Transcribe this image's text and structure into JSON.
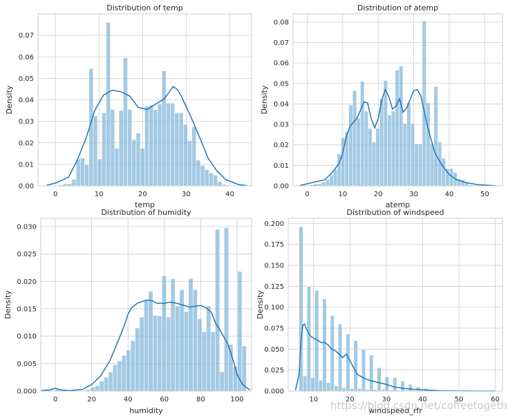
{
  "watermark": "https://blog.csdn.net/coffeetogether",
  "chart_data": [
    {
      "type": "bar",
      "title": "Distribution of temp",
      "xlabel": "temp",
      "ylabel": "Density",
      "xlim": [
        -4,
        45
      ],
      "ylim": [
        0,
        0.08
      ],
      "xticks": [
        0,
        10,
        20,
        30,
        40
      ],
      "yticks": [
        0.0,
        0.01,
        0.02,
        0.03,
        0.04,
        0.05,
        0.06,
        0.07
      ],
      "ytick_labels": [
        "0.00",
        "0.01",
        "0.02",
        "0.03",
        "0.04",
        "0.05",
        "0.06",
        "0.07"
      ],
      "bin_start": 0.8,
      "bin_width": 0.984,
      "values": [
        0.0005,
        0.001,
        0.001,
        0.003,
        0.0125,
        0.013,
        0.01,
        0.0545,
        0.0325,
        0.0125,
        0.034,
        0.076,
        0.0355,
        0.0175,
        0.035,
        0.0595,
        0.0355,
        0.0215,
        0.0245,
        0.0175,
        0.037,
        0.0375,
        0.0355,
        0.038,
        0.0535,
        0.0385,
        0.0385,
        0.034,
        0.034,
        0.0285,
        0.021,
        0.0275,
        0.012,
        0.0095,
        0.0075,
        0.006,
        0.005,
        0.002,
        0.0007,
        0.0002
      ],
      "kde": [
        [
          -2,
          0.0003
        ],
        [
          0,
          0.0013
        ],
        [
          3,
          0.004
        ],
        [
          5,
          0.012
        ],
        [
          7,
          0.022
        ],
        [
          9,
          0.035
        ],
        [
          11,
          0.0422
        ],
        [
          13,
          0.0445
        ],
        [
          15,
          0.0438
        ],
        [
          17,
          0.0418
        ],
        [
          19,
          0.0365
        ],
        [
          21,
          0.0355
        ],
        [
          23,
          0.038
        ],
        [
          25,
          0.0405
        ],
        [
          27,
          0.0462
        ],
        [
          28,
          0.0448
        ],
        [
          29,
          0.0412
        ],
        [
          31,
          0.0325
        ],
        [
          33,
          0.023
        ],
        [
          35,
          0.013
        ],
        [
          37,
          0.007
        ],
        [
          39,
          0.003
        ],
        [
          42,
          0.0006
        ],
        [
          44,
          0.0001
        ]
      ]
    },
    {
      "type": "bar",
      "title": "Distribution of atemp",
      "xlabel": "atemp",
      "ylabel": "Density",
      "xlim": [
        -4,
        55
      ],
      "ylim": [
        0,
        0.084
      ],
      "xticks": [
        0,
        10,
        20,
        30,
        40,
        50
      ],
      "yticks": [
        0.0,
        0.01,
        0.02,
        0.03,
        0.04,
        0.05,
        0.06,
        0.07,
        0.08
      ],
      "ytick_labels": [
        "0.00",
        "0.01",
        "0.02",
        "0.03",
        "0.04",
        "0.05",
        "0.06",
        "0.07",
        "0.08"
      ],
      "bin_start": 0.8,
      "bin_width": 1.09,
      "values": [
        0.0005,
        0.001,
        0.001,
        0.002,
        0.003,
        0.005,
        0.008,
        0.0155,
        0.0235,
        0.0265,
        0.0395,
        0.0465,
        0.033,
        0.051,
        0.0365,
        0.028,
        0.0215,
        0.028,
        0.0425,
        0.0515,
        0.0345,
        0.0365,
        0.0565,
        0.0585,
        0.0305,
        0.0405,
        0.0305,
        0.0205,
        0.0205,
        0.0805,
        0.0405,
        0.0205,
        0.0485,
        0.0215,
        0.0135,
        0.0085,
        0.0085,
        0.0065,
        0.0035,
        0.003,
        0.0015,
        0.0005
      ],
      "kde": [
        [
          -2,
          0.0002
        ],
        [
          0,
          0.001
        ],
        [
          5,
          0.003
        ],
        [
          7,
          0.0065
        ],
        [
          9,
          0.011
        ],
        [
          10,
          0.016
        ],
        [
          11,
          0.024
        ],
        [
          12,
          0.029
        ],
        [
          14,
          0.033
        ],
        [
          15,
          0.037
        ],
        [
          16,
          0.041
        ],
        [
          17,
          0.0405
        ],
        [
          18,
          0.033
        ],
        [
          19,
          0.0283
        ],
        [
          20,
          0.033
        ],
        [
          21,
          0.042
        ],
        [
          22,
          0.047
        ],
        [
          23,
          0.0435
        ],
        [
          24,
          0.0375
        ],
        [
          25,
          0.039
        ],
        [
          26,
          0.0425
        ],
        [
          27,
          0.036
        ],
        [
          28,
          0.038
        ],
        [
          30,
          0.0465
        ],
        [
          31,
          0.047
        ],
        [
          32,
          0.044
        ],
        [
          34,
          0.028
        ],
        [
          36,
          0.016
        ],
        [
          38,
          0.01
        ],
        [
          40,
          0.0055
        ],
        [
          42,
          0.003
        ],
        [
          45,
          0.0015
        ],
        [
          48,
          0.0006
        ],
        [
          53,
          0.0001
        ]
      ]
    },
    {
      "type": "bar",
      "title": "Distribution of humidity",
      "xlabel": "humidity",
      "ylabel": "Density",
      "xlim": [
        -8,
        108
      ],
      "ylim": [
        0,
        0.0315
      ],
      "xticks": [
        0,
        20,
        40,
        60,
        80,
        100
      ],
      "yticks": [
        0.0,
        0.005,
        0.01,
        0.015,
        0.02,
        0.025,
        0.03
      ],
      "ytick_labels": [
        "0.000",
        "0.005",
        "0.010",
        "0.015",
        "0.020",
        "0.025",
        "0.030"
      ],
      "bin_start": -0.2,
      "bin_width": 2.45,
      "values": [
        0.0003,
        0.0001,
        0,
        0,
        0,
        0,
        0,
        0.0003,
        0.0007,
        0.001,
        0.0018,
        0.0025,
        0.0035,
        0.0048,
        0.0055,
        0.0065,
        0.0075,
        0.0092,
        0.0115,
        0.0135,
        0.0165,
        0.0182,
        0.0138,
        0.0137,
        0.021,
        0.0135,
        0.0205,
        0.0155,
        0.0185,
        0.0145,
        0.0205,
        0.0185,
        0.0132,
        0.0108,
        0.0155,
        0.0108,
        0.0295,
        0.0035,
        0.0298,
        0.0085,
        0.0045,
        0.0218,
        0.0082
      ],
      "kde": [
        [
          -8,
          0.0001
        ],
        [
          -3,
          0.0002
        ],
        [
          0,
          0.0005
        ],
        [
          3,
          0.0002
        ],
        [
          8,
          0.0001
        ],
        [
          15,
          0.0003
        ],
        [
          20,
          0.0012
        ],
        [
          25,
          0.0028
        ],
        [
          30,
          0.0055
        ],
        [
          35,
          0.0095
        ],
        [
          38,
          0.012
        ],
        [
          40,
          0.014
        ],
        [
          42,
          0.0152
        ],
        [
          45,
          0.016
        ],
        [
          50,
          0.0166
        ],
        [
          53,
          0.0165
        ],
        [
          56,
          0.016
        ],
        [
          60,
          0.016
        ],
        [
          63,
          0.0162
        ],
        [
          67,
          0.016
        ],
        [
          70,
          0.0157
        ],
        [
          74,
          0.0153
        ],
        [
          77,
          0.0155
        ],
        [
          80,
          0.0156
        ],
        [
          83,
          0.0152
        ],
        [
          86,
          0.0143
        ],
        [
          88,
          0.0125
        ],
        [
          90,
          0.0115
        ],
        [
          92,
          0.0103
        ],
        [
          95,
          0.0085
        ],
        [
          98,
          0.0055
        ],
        [
          100,
          0.003
        ],
        [
          103,
          0.0012
        ],
        [
          107,
          0.0002
        ]
      ]
    },
    {
      "type": "bar",
      "title": "Distribution of windspeed",
      "xlabel": "windspeed_rfr",
      "ylabel": "Density",
      "xlim": [
        3,
        62
      ],
      "ylim": [
        0,
        0.206
      ],
      "xticks": [
        10,
        20,
        30,
        40,
        50,
        60
      ],
      "yticks": [
        0.0,
        0.025,
        0.05,
        0.075,
        0.1,
        0.125,
        0.15,
        0.175,
        0.2
      ],
      "ytick_labels": [
        "0.000",
        "0.025",
        "0.050",
        "0.075",
        "0.100",
        "0.125",
        "0.150",
        "0.175",
        "0.200"
      ],
      "bin_start": 6.0,
      "bin_width": 1.075,
      "values": [
        0.196,
        0.018,
        0.125,
        0.016,
        0.12,
        0.013,
        0.11,
        0.01,
        0.09,
        0.006,
        0.08,
        0.004,
        0.068,
        0.003,
        0.06,
        0.003,
        0.05,
        0.002,
        0.043,
        0.002,
        0.028,
        0.002,
        0.017,
        0.001,
        0.016,
        0.001,
        0.012,
        0.001,
        0.008,
        0.001,
        0.005,
        0.001,
        0.003,
        0.0008,
        0.0005,
        0.0004,
        0.0003,
        0.0002,
        0.0002,
        0.0001,
        0.0001,
        0.0001,
        0.0001,
        0.0001,
        0.0001,
        0.0001,
        0.0001,
        0.0001,
        0.0001,
        0.0001,
        0.0001,
        0.0001
      ],
      "kde": [
        [
          5,
          0.001
        ],
        [
          6,
          0.02
        ],
        [
          6.5,
          0.06
        ],
        [
          7,
          0.078
        ],
        [
          7.5,
          0.08
        ],
        [
          8,
          0.074
        ],
        [
          9,
          0.066
        ],
        [
          10,
          0.063
        ],
        [
          11,
          0.061
        ],
        [
          12,
          0.058
        ],
        [
          13,
          0.058
        ],
        [
          14,
          0.055
        ],
        [
          15,
          0.05
        ],
        [
          16,
          0.048
        ],
        [
          17,
          0.044
        ],
        [
          18,
          0.04
        ],
        [
          19,
          0.044
        ],
        [
          20,
          0.036
        ],
        [
          22,
          0.02
        ],
        [
          24,
          0.015
        ],
        [
          26,
          0.012
        ],
        [
          28,
          0.01
        ],
        [
          30,
          0.008
        ],
        [
          32,
          0.005
        ],
        [
          35,
          0.003
        ],
        [
          40,
          0.0015
        ],
        [
          45,
          0.0005
        ],
        [
          50,
          0.0002
        ],
        [
          55,
          0.0001
        ],
        [
          60,
          0.0001
        ]
      ]
    }
  ]
}
